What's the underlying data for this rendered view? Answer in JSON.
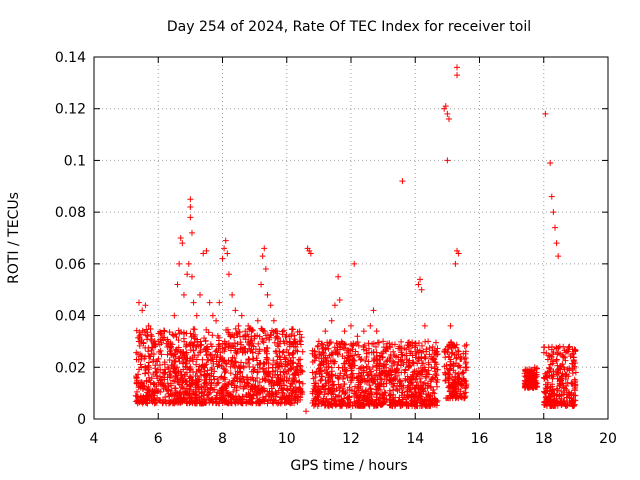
{
  "chart_data": {
    "type": "scatter",
    "title": "Day 254 of 2024, Rate Of TEC Index for receiver toil",
    "xlabel": "GPS time / hours",
    "ylabel": "ROTI / TECUs",
    "xlim": [
      4,
      20
    ],
    "ylim": [
      0,
      0.14
    ],
    "x_ticks": [
      4,
      6,
      8,
      10,
      12,
      14,
      16,
      18,
      20
    ],
    "x_tick_labels": [
      "4",
      "6",
      "8",
      "10",
      "12",
      "14",
      "16",
      "18",
      "20"
    ],
    "y_ticks": [
      0,
      0.02,
      0.04,
      0.06,
      0.08,
      0.1,
      0.12,
      0.14
    ],
    "y_tick_labels": [
      "0",
      "0.02",
      "0.04",
      "0.06",
      "0.08",
      "0.1",
      "0.12",
      "0.14"
    ],
    "grid": true,
    "marker": "+",
    "marker_color": "#ff0000",
    "series": [
      {
        "name": "ROTI",
        "points": [
          [
            5.4,
            0.045
          ],
          [
            5.5,
            0.042
          ],
          [
            5.6,
            0.044
          ],
          [
            5.7,
            0.036
          ],
          [
            5.8,
            0.032
          ],
          [
            5.9,
            0.028
          ],
          [
            6.0,
            0.03
          ],
          [
            6.1,
            0.025
          ],
          [
            6.2,
            0.022
          ],
          [
            6.3,
            0.02
          ],
          [
            6.4,
            0.028
          ],
          [
            6.5,
            0.04
          ],
          [
            6.6,
            0.052
          ],
          [
            6.65,
            0.06
          ],
          [
            6.7,
            0.07
          ],
          [
            6.75,
            0.068
          ],
          [
            6.8,
            0.048
          ],
          [
            6.9,
            0.056
          ],
          [
            6.95,
            0.06
          ],
          [
            7.0,
            0.085
          ],
          [
            7.0,
            0.082
          ],
          [
            7.0,
            0.078
          ],
          [
            7.05,
            0.072
          ],
          [
            7.05,
            0.055
          ],
          [
            7.1,
            0.045
          ],
          [
            7.2,
            0.04
          ],
          [
            7.3,
            0.048
          ],
          [
            7.4,
            0.064
          ],
          [
            7.5,
            0.065
          ],
          [
            7.6,
            0.045
          ],
          [
            7.7,
            0.04
          ],
          [
            7.8,
            0.038
          ],
          [
            7.9,
            0.045
          ],
          [
            8.0,
            0.062
          ],
          [
            8.05,
            0.066
          ],
          [
            8.1,
            0.069
          ],
          [
            8.15,
            0.064
          ],
          [
            8.2,
            0.056
          ],
          [
            8.3,
            0.048
          ],
          [
            8.4,
            0.042
          ],
          [
            8.5,
            0.036
          ],
          [
            8.6,
            0.04
          ],
          [
            8.7,
            0.032
          ],
          [
            8.8,
            0.036
          ],
          [
            8.9,
            0.034
          ],
          [
            9.0,
            0.032
          ],
          [
            9.1,
            0.038
          ],
          [
            9.2,
            0.052
          ],
          [
            9.25,
            0.063
          ],
          [
            9.3,
            0.066
          ],
          [
            9.35,
            0.058
          ],
          [
            9.4,
            0.048
          ],
          [
            9.5,
            0.044
          ],
          [
            9.6,
            0.038
          ],
          [
            9.7,
            0.034
          ],
          [
            9.8,
            0.03
          ],
          [
            9.9,
            0.026
          ],
          [
            10.0,
            0.03
          ],
          [
            10.1,
            0.028
          ],
          [
            10.2,
            0.02
          ],
          [
            10.4,
            0.012
          ],
          [
            10.6,
            0.003
          ],
          [
            10.65,
            0.066
          ],
          [
            10.7,
            0.065
          ],
          [
            10.75,
            0.064
          ],
          [
            10.8,
            0.018
          ],
          [
            11.0,
            0.03
          ],
          [
            11.2,
            0.034
          ],
          [
            11.4,
            0.038
          ],
          [
            11.5,
            0.044
          ],
          [
            11.6,
            0.055
          ],
          [
            11.65,
            0.046
          ],
          [
            11.8,
            0.034
          ],
          [
            12.0,
            0.036
          ],
          [
            12.1,
            0.06
          ],
          [
            12.2,
            0.032
          ],
          [
            12.4,
            0.034
          ],
          [
            12.6,
            0.036
          ],
          [
            12.7,
            0.042
          ],
          [
            12.8,
            0.034
          ],
          [
            13.0,
            0.03
          ],
          [
            13.2,
            0.028
          ],
          [
            13.4,
            0.024
          ],
          [
            13.5,
            0.028
          ],
          [
            13.6,
            0.092
          ],
          [
            13.8,
            0.022
          ],
          [
            14.0,
            0.026
          ],
          [
            14.1,
            0.052
          ],
          [
            14.15,
            0.054
          ],
          [
            14.2,
            0.05
          ],
          [
            14.3,
            0.036
          ],
          [
            14.4,
            0.03
          ],
          [
            14.5,
            0.02
          ],
          [
            14.9,
            0.12
          ],
          [
            14.95,
            0.121
          ],
          [
            15.0,
            0.118
          ],
          [
            15.0,
            0.1
          ],
          [
            15.05,
            0.116
          ],
          [
            15.1,
            0.036
          ],
          [
            15.2,
            0.028
          ],
          [
            15.25,
            0.06
          ],
          [
            15.3,
            0.065
          ],
          [
            15.3,
            0.136
          ],
          [
            15.3,
            0.133
          ],
          [
            15.35,
            0.064
          ],
          [
            15.4,
            0.02
          ],
          [
            15.6,
            0.02
          ],
          [
            17.5,
            0.014
          ],
          [
            17.6,
            0.018
          ],
          [
            17.7,
            0.016
          ],
          [
            18.05,
            0.118
          ],
          [
            18.2,
            0.099
          ],
          [
            18.25,
            0.086
          ],
          [
            18.3,
            0.08
          ],
          [
            18.35,
            0.074
          ],
          [
            18.4,
            0.068
          ],
          [
            18.45,
            0.063
          ],
          [
            18.5,
            0.028
          ],
          [
            18.6,
            0.024
          ],
          [
            18.8,
            0.028
          ],
          [
            19.0,
            0.018
          ]
        ]
      }
    ],
    "dense_band": {
      "name": "ROTI dense background",
      "ranges": [
        {
          "x": [
            5.3,
            10.5
          ],
          "y": [
            0.006,
            0.035
          ]
        },
        {
          "x": [
            10.8,
            14.7
          ],
          "y": [
            0.005,
            0.03
          ]
        },
        {
          "x": [
            14.9,
            15.6
          ],
          "y": [
            0.008,
            0.03
          ]
        },
        {
          "x": [
            17.4,
            17.8
          ],
          "y": [
            0.012,
            0.02
          ]
        },
        {
          "x": [
            18.0,
            19.0
          ],
          "y": [
            0.005,
            0.028
          ]
        }
      ]
    }
  }
}
